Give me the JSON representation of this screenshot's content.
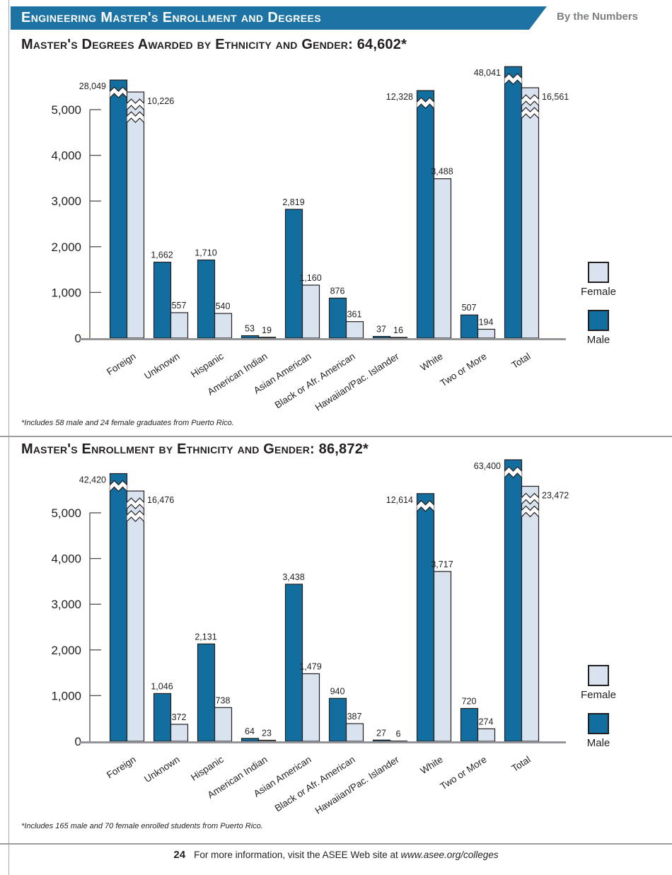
{
  "header": {
    "title": "Engineering Master's Enrollment and Degrees",
    "badge": "By the Numbers"
  },
  "legend": {
    "female_label": "Female",
    "male_label": "Male"
  },
  "colors": {
    "male": "#116e9e",
    "female": "#d9e3ef",
    "banner": "#1d74a4",
    "badge_text": "#7d8083",
    "outline": "#231f20",
    "baseline": "#939598"
  },
  "footer": {
    "page_number": "24",
    "text": "For more information, visit the ASEE Web site at",
    "link": "www.asee.org/colleges"
  },
  "chart_data": [
    {
      "type": "bar",
      "title": "Master's Degrees Awarded by Ethnicity and Gender: 64,602*",
      "footnote": "*Includes 58 male and 24 female graduates from Puerto Rico.",
      "categories": [
        "Foreign",
        "Unknown",
        "Hispanic",
        "American Indian",
        "Asian American",
        "Black or Afr. American",
        "Hawaiian/Pac. Islander",
        "White",
        "Two or More",
        "Total"
      ],
      "series": [
        {
          "name": "Male",
          "color_key": "male",
          "values": [
            28049,
            1662,
            1710,
            53,
            2819,
            876,
            37,
            12328,
            507,
            48041
          ],
          "labels": [
            "28,049",
            "1,662",
            "1,710",
            "53",
            "2,819",
            "876",
            "37",
            "12,328",
            "507",
            "48,041"
          ]
        },
        {
          "name": "Female",
          "color_key": "female",
          "values": [
            10226,
            557,
            540,
            19,
            1160,
            361,
            16,
            3488,
            194,
            16561
          ],
          "labels": [
            "10,226",
            "557",
            "540",
            "19",
            "1,160",
            "361",
            "16",
            "3,488",
            "194",
            "16,561"
          ]
        }
      ],
      "ylim": [
        0,
        5000
      ],
      "yticks": [
        "0",
        "1,000",
        "2,000",
        "3,000",
        "4,000",
        "5,000"
      ],
      "grid": "off",
      "legend_position": "right",
      "axis_break": "bars above 5,000 drawn clipped with zigzag break"
    },
    {
      "type": "bar",
      "title": "Master's Enrollment by Ethnicity and Gender: 86,872*",
      "footnote": "*Includes 165 male and 70 female enrolled students from Puerto Rico.",
      "categories": [
        "Foreign",
        "Unknown",
        "Hispanic",
        "American Indian",
        "Asian American",
        "Black or Afr. American",
        "Hawaiian/Pac. Islander",
        "White",
        "Two or More",
        "Total"
      ],
      "series": [
        {
          "name": "Male",
          "color_key": "male",
          "values": [
            42420,
            1046,
            2131,
            64,
            3438,
            940,
            27,
            12614,
            720,
            63400
          ],
          "labels": [
            "42,420",
            "1,046",
            "2,131",
            "64",
            "3,438",
            "940",
            "27",
            "12,614",
            "720",
            "63,400"
          ]
        },
        {
          "name": "Female",
          "color_key": "female",
          "values": [
            16476,
            372,
            738,
            23,
            1479,
            387,
            6,
            3717,
            274,
            23472
          ],
          "labels": [
            "16,476",
            "372",
            "738",
            "23",
            "1,479",
            "387",
            "6",
            "3,717",
            "274",
            "23,472"
          ]
        }
      ],
      "ylim": [
        0,
        5000
      ],
      "yticks": [
        "0",
        "1,000",
        "2,000",
        "3,000",
        "4,000",
        "5,000"
      ],
      "grid": "off",
      "legend_position": "right",
      "axis_break": "bars above 5,000 drawn clipped with zigzag break"
    }
  ]
}
